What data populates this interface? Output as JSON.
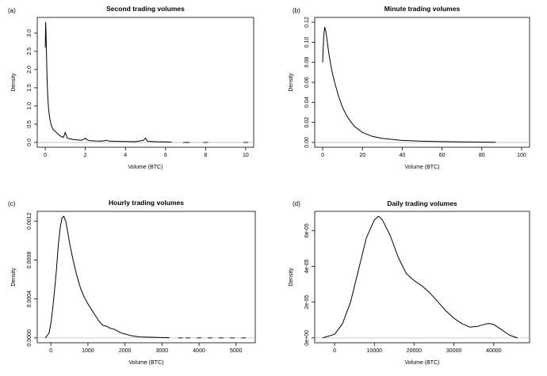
{
  "chart_data": [
    {
      "panel": "(a)",
      "type": "line",
      "title": "Second trading volumes",
      "xlabel": "Volume (BTC)",
      "ylabel": "Density",
      "xlim": [
        0,
        10
      ],
      "ylim": [
        0,
        3.3
      ],
      "x_ticks": [
        0,
        2,
        4,
        6,
        8,
        10
      ],
      "y_ticks": [
        0.0,
        0.5,
        1.0,
        1.5,
        2.0,
        2.5,
        3.0
      ],
      "x_tick_labels": [
        "0",
        "2",
        "4",
        "6",
        "8",
        "10"
      ],
      "y_tick_labels": [
        "0.0",
        "0.5",
        "1.0",
        "1.5",
        "2.0",
        "2.5",
        "3.0"
      ],
      "series": [
        {
          "name": "density",
          "x": [
            0.0,
            0.02,
            0.04,
            0.06,
            0.08,
            0.1,
            0.13,
            0.16,
            0.2,
            0.25,
            0.3,
            0.35,
            0.4,
            0.5,
            0.6,
            0.7,
            0.8,
            0.9,
            0.95,
            1.0,
            1.05,
            1.1,
            1.2,
            1.4,
            1.6,
            1.8,
            1.95,
            2.0,
            2.05,
            2.2,
            2.5,
            2.8,
            3.0,
            3.05,
            3.2,
            3.5,
            4.0,
            4.5,
            4.9,
            5.0,
            5.1,
            5.5,
            6.0,
            6.3
          ],
          "y": [
            2.6,
            3.3,
            3.0,
            2.5,
            2.0,
            1.6,
            1.2,
            0.95,
            0.75,
            0.58,
            0.47,
            0.4,
            0.35,
            0.3,
            0.25,
            0.2,
            0.16,
            0.14,
            0.2,
            0.28,
            0.18,
            0.12,
            0.1,
            0.08,
            0.07,
            0.06,
            0.09,
            0.12,
            0.08,
            0.05,
            0.04,
            0.035,
            0.05,
            0.06,
            0.035,
            0.03,
            0.025,
            0.02,
            0.06,
            0.12,
            0.03,
            0.02,
            0.015,
            0.01
          ]
        }
      ],
      "rug_x": [
        7.0,
        7.1,
        8.0,
        10.0
      ]
    },
    {
      "panel": "(b)",
      "type": "line",
      "title": "Minute trading volumes",
      "xlabel": "Volume (BTC)",
      "ylabel": "Density",
      "xlim": [
        0,
        100
      ],
      "ylim": [
        0,
        0.12
      ],
      "x_ticks": [
        0,
        20,
        40,
        60,
        80,
        100
      ],
      "y_ticks": [
        0.0,
        0.02,
        0.04,
        0.06,
        0.08,
        0.1,
        0.12
      ],
      "x_tick_labels": [
        "0",
        "20",
        "40",
        "60",
        "80",
        "100"
      ],
      "y_tick_labels": [
        "0.00",
        "0.02",
        "0.04",
        "0.06",
        "0.08",
        "0.10",
        "0.12"
      ],
      "series": [
        {
          "name": "density",
          "x": [
            0,
            0.5,
            1,
            1.5,
            2,
            3,
            4,
            5,
            6,
            8,
            10,
            12,
            14,
            16,
            18,
            20,
            25,
            30,
            35,
            40,
            50,
            60,
            70,
            80,
            87
          ],
          "y": [
            0.08,
            0.105,
            0.115,
            0.112,
            0.105,
            0.09,
            0.078,
            0.068,
            0.06,
            0.046,
            0.035,
            0.027,
            0.021,
            0.016,
            0.013,
            0.01,
            0.006,
            0.004,
            0.003,
            0.002,
            0.0012,
            0.0008,
            0.0005,
            0.0003,
            0.0002
          ]
        }
      ]
    },
    {
      "panel": "(c)",
      "type": "line",
      "title": "Hourly trading volumes",
      "xlabel": "Volume (BTC)",
      "ylabel": "Density",
      "xlim": [
        -150,
        5300
      ],
      "ylim": [
        0,
        0.00125
      ],
      "x_ticks": [
        0,
        1000,
        2000,
        3000,
        4000,
        5000
      ],
      "y_ticks": [
        0.0,
        0.0004,
        0.0008,
        0.0012
      ],
      "x_tick_labels": [
        "0",
        "1000",
        "2000",
        "3000",
        "4000",
        "5000"
      ],
      "y_tick_labels": [
        "0.0000",
        "0.0004",
        "0.0008",
        "0.0012"
      ],
      "series": [
        {
          "name": "density",
          "x": [
            -150,
            -50,
            0,
            50,
            100,
            150,
            200,
            250,
            300,
            350,
            400,
            450,
            500,
            600,
            700,
            800,
            900,
            1000,
            1100,
            1200,
            1300,
            1400,
            1500,
            1600,
            1700,
            1800,
            1900,
            2000,
            2100,
            2200,
            2400,
            2600,
            2800,
            3000,
            3200
          ],
          "y": [
            0.0,
            5e-05,
            0.00015,
            0.0003,
            0.0005,
            0.0007,
            0.00095,
            0.00113,
            0.00123,
            0.00125,
            0.0012,
            0.0011,
            0.00098,
            0.0008,
            0.00064,
            0.00051,
            0.00042,
            0.00035,
            0.00029,
            0.00023,
            0.00017,
            0.00013,
            0.00012,
            0.0001,
            9e-05,
            7e-05,
            5e-05,
            4e-05,
            3e-05,
            2e-05,
            1e-05,
            8e-06,
            6e-06,
            4e-06,
            2e-06
          ]
        }
      ],
      "rug_x": [
        3500,
        3700,
        4000,
        4300,
        4600,
        4900,
        5200
      ]
    },
    {
      "panel": "(d)",
      "type": "line",
      "title": "Daily trading volumes",
      "xlabel": "Volume (BTC)",
      "ylabel": "Density",
      "xlim": [
        -3000,
        47000
      ],
      "ylim": [
        0,
        6.8e-05
      ],
      "x_ticks": [
        0,
        10000,
        20000,
        30000,
        40000
      ],
      "y_ticks": [
        0,
        2e-05,
        4e-05,
        6e-05
      ],
      "x_tick_labels": [
        "0",
        "10000",
        "20000",
        "30000",
        "40000"
      ],
      "y_tick_labels": [
        "0e+00",
        "2e-05",
        "4e-05",
        "6e-05"
      ],
      "series": [
        {
          "name": "density",
          "x": [
            -3000,
            0,
            2000,
            4000,
            6000,
            8000,
            10000,
            11000,
            12000,
            14000,
            16000,
            18000,
            20000,
            22000,
            24000,
            26000,
            28000,
            30000,
            32000,
            34000,
            36000,
            38000,
            39000,
            40000,
            42000,
            44000,
            46000
          ],
          "y": [
            0.0,
            2e-06,
            8e-06,
            2e-05,
            3.8e-05,
            5.6e-05,
            6.6e-05,
            6.8e-05,
            6.6e-05,
            5.7e-05,
            4.5e-05,
            3.6e-05,
            3.2e-05,
            2.9e-05,
            2.5e-05,
            2e-05,
            1.5e-05,
            1.1e-05,
            8e-06,
            6e-06,
            6.5e-06,
            7.8e-06,
            8e-06,
            7.5e-06,
            4.5e-06,
            1.5e-06,
            0.0
          ]
        }
      ]
    }
  ]
}
